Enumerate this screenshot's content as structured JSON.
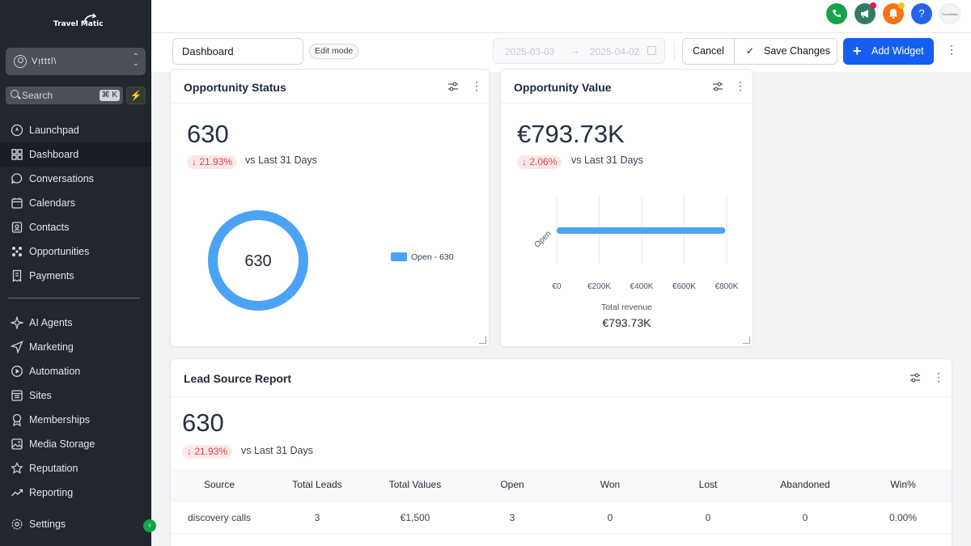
{
  "sidebar": {
    "logo_text": "Travel Matic",
    "account_name": "Vᴉtttl\\",
    "search_label": "Search",
    "search_shortcut": "⌘ K",
    "items": [
      {
        "label": "Launchpad",
        "icon": "rocket-icon"
      },
      {
        "label": "Dashboard",
        "icon": "grid-icon",
        "active": true
      },
      {
        "label": "Conversations",
        "icon": "chat-icon"
      },
      {
        "label": "Calendars",
        "icon": "calendar-icon"
      },
      {
        "label": "Contacts",
        "icon": "contacts-icon"
      },
      {
        "label": "Opportunities",
        "icon": "opportunities-icon"
      },
      {
        "label": "Payments",
        "icon": "receipt-icon"
      },
      {
        "label": "AI Agents",
        "icon": "sparkle-icon"
      },
      {
        "label": "Marketing",
        "icon": "send-icon"
      },
      {
        "label": "Automation",
        "icon": "automation-icon"
      },
      {
        "label": "Sites",
        "icon": "sites-icon"
      },
      {
        "label": "Memberships",
        "icon": "award-icon"
      },
      {
        "label": "Media Storage",
        "icon": "image-icon"
      },
      {
        "label": "Reputation",
        "icon": "star-icon"
      },
      {
        "label": "Reporting",
        "icon": "trend-icon"
      },
      {
        "label": "Settings",
        "icon": "gear-icon"
      }
    ]
  },
  "topbar": {
    "help_label": "?",
    "avatar_text": "TravelMatic"
  },
  "toolbar": {
    "dashboard_name": "Dashboard",
    "edit_mode_label": "Edit mode",
    "date_start": "2025-03-03",
    "date_end": "2025-04-02",
    "cancel_label": "Cancel",
    "save_label": "Save Changes",
    "add_widget_label": "Add Widget"
  },
  "opportunity_status": {
    "title": "Opportunity Status",
    "value": "630",
    "delta": "21.93%",
    "delta_label": "vs Last 31 Days",
    "donut_center": "630",
    "legend": "Open - 630"
  },
  "opportunity_value": {
    "title": "Opportunity Value",
    "value": "€793.73K",
    "delta": "2.06%",
    "delta_label": "vs Last 31 Days",
    "total_label": "Total revenue",
    "total_value": "€793.73K"
  },
  "lead_source": {
    "title": "Lead Source Report",
    "value": "630",
    "delta": "21.93%",
    "delta_label": "vs Last 31 Days",
    "columns": [
      "Source",
      "Total Leads",
      "Total Values",
      "Open",
      "Won",
      "Lost",
      "Abandoned",
      "Win%"
    ],
    "rows": [
      [
        "discovery calls",
        "3",
        "€1,500",
        "3",
        "0",
        "0",
        "0",
        "0.00%"
      ]
    ]
  },
  "chart_data": [
    {
      "type": "pie",
      "categories": [
        "Open"
      ],
      "values": [
        630
      ]
    },
    {
      "type": "bar",
      "orientation": "horizontal",
      "categories": [
        "Open"
      ],
      "values": [
        793730
      ],
      "xlim": [
        0,
        800000
      ],
      "xticks": [
        "€0",
        "€200K",
        "€400K",
        "€600K",
        "€800K"
      ],
      "xlabel": "",
      "ylabel": ""
    }
  ],
  "colors": {
    "accent": "#155eef",
    "series": "#4ba3f5",
    "negative": "#e04444",
    "sidebar_bg": "#22262e"
  }
}
